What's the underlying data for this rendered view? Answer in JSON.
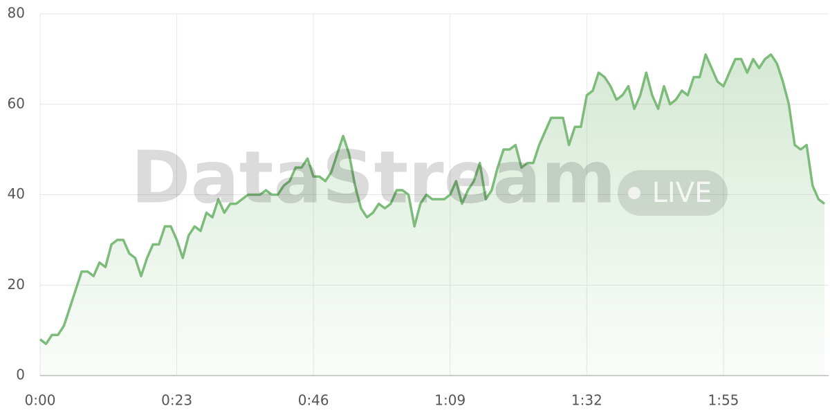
{
  "chart_data": {
    "type": "line",
    "watermark": "DataStream",
    "badge": "LIVE",
    "x": [
      0,
      1,
      2,
      3,
      4,
      5,
      6,
      7,
      8,
      9,
      10,
      11,
      12,
      13,
      14,
      15,
      16,
      17,
      18,
      19,
      20,
      21,
      22,
      23,
      24,
      25,
      26,
      27,
      28,
      29,
      30,
      31,
      32,
      33,
      34,
      35,
      36,
      37,
      38,
      39,
      40,
      41,
      42,
      43,
      44,
      45,
      46,
      47,
      48,
      49,
      50,
      51,
      52,
      53,
      54,
      55,
      56,
      57,
      58,
      59,
      60,
      61,
      62,
      63,
      64,
      65,
      66,
      67,
      68,
      69,
      70,
      71,
      72,
      73,
      74,
      75,
      76,
      77,
      78,
      79,
      80,
      81,
      82,
      83,
      84,
      85,
      86,
      87,
      88,
      89,
      90,
      91,
      92,
      93,
      94,
      95,
      96,
      97,
      98,
      99,
      100,
      101,
      102,
      103,
      104,
      105,
      106,
      107,
      108,
      109,
      110,
      111,
      112,
      113,
      114,
      115,
      116,
      117,
      118,
      119,
      120,
      121,
      122,
      123,
      124,
      125,
      126,
      127,
      128,
      129,
      130,
      131,
      132
    ],
    "values": [
      8,
      7,
      9,
      9,
      11,
      15,
      19,
      23,
      23,
      22,
      25,
      24,
      29,
      30,
      30,
      27,
      26,
      22,
      26,
      29,
      29,
      33,
      33,
      30,
      26,
      31,
      33,
      32,
      36,
      35,
      39,
      36,
      38,
      38,
      39,
      40,
      40,
      40,
      41,
      40,
      40,
      42,
      43,
      46,
      46,
      48,
      44,
      44,
      43,
      45,
      49,
      53,
      49,
      42,
      37,
      35,
      36,
      38,
      37,
      38,
      41,
      41,
      40,
      33,
      38,
      40,
      39,
      39,
      39,
      40,
      43,
      38,
      41,
      43,
      47,
      39,
      41,
      46,
      50,
      50,
      51,
      46,
      47,
      47,
      51,
      54,
      57,
      57,
      57,
      51,
      55,
      55,
      62,
      63,
      67,
      66,
      64,
      61,
      62,
      64,
      59,
      62,
      67,
      62,
      59,
      64,
      60,
      61,
      63,
      62,
      66,
      66,
      71,
      68,
      65,
      64,
      67,
      70,
      70,
      67,
      70,
      68,
      70,
      71,
      69,
      65,
      60,
      51,
      50,
      51,
      42,
      39,
      38
    ],
    "color": "#7dbb7a",
    "xlim": [
      0,
      132
    ],
    "xticks": [
      {
        "value": 0,
        "label": "0:00"
      },
      {
        "value": 23,
        "label": "0:23"
      },
      {
        "value": 46,
        "label": "0:46"
      },
      {
        "value": 69,
        "label": "1:09"
      },
      {
        "value": 92,
        "label": "1:32"
      },
      {
        "value": 115,
        "label": "1:55"
      }
    ],
    "ylim": [
      0,
      80
    ],
    "yticks": [
      0,
      20,
      40,
      60,
      80
    ],
    "grid": true
  }
}
